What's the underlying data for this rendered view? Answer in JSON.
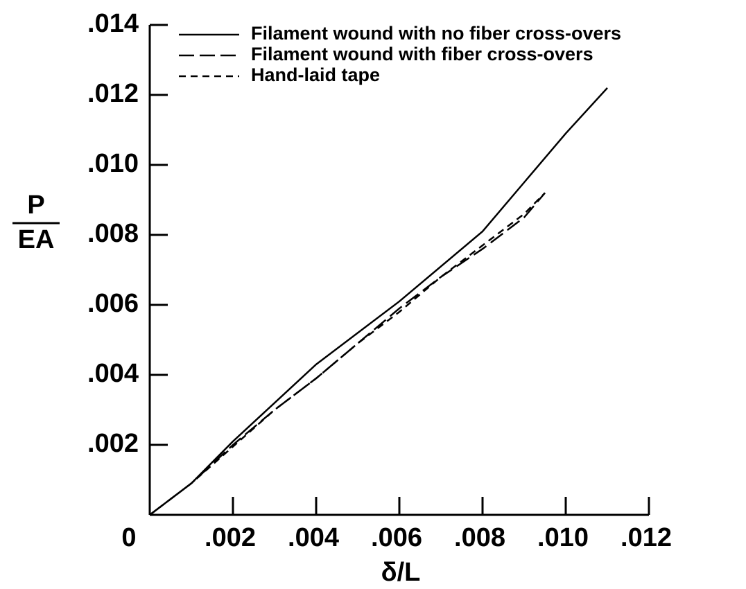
{
  "chart_data": {
    "type": "line",
    "y_label_numerator": "P",
    "y_label_denominator": "EA",
    "x_label": "δ/L",
    "xlim": [
      0,
      0.012
    ],
    "ylim": [
      0,
      0.014
    ],
    "xticks": [
      0,
      {
        "value": 0.002,
        "label": ".002"
      },
      {
        "value": 0.004,
        "label": ".004"
      },
      {
        "value": 0.006,
        "label": ".006"
      },
      {
        "value": 0.008,
        "label": ".008"
      },
      {
        "value": 0.01,
        "label": ".010"
      },
      {
        "value": 0.012,
        "label": ".012"
      }
    ],
    "yticks": [
      {
        "value": 0.002,
        "label": ".002"
      },
      {
        "value": 0.004,
        "label": ".004"
      },
      {
        "value": 0.006,
        "label": ".006"
      },
      {
        "value": 0.008,
        "label": ".008"
      },
      {
        "value": 0.01,
        "label": ".010"
      },
      {
        "value": 0.012,
        "label": ".012"
      },
      {
        "value": 0.014,
        "label": ".014"
      }
    ],
    "series": [
      {
        "name": "Filament wound with no fiber cross-overs",
        "color": "#000000",
        "dash": "solid",
        "x": [
          0,
          0.001,
          0.002,
          0.003,
          0.004,
          0.005,
          0.006,
          0.007,
          0.008,
          0.009,
          0.01,
          0.011
        ],
        "values": [
          0,
          0.0009,
          0.0021,
          0.0032,
          0.0043,
          0.0052,
          0.0061,
          0.0071,
          0.0081,
          0.0095,
          0.0109,
          0.0122
        ]
      },
      {
        "name": "Filament wound with fiber cross-overs",
        "color": "#000000",
        "dash": "long",
        "x": [
          0,
          0.001,
          0.002,
          0.003,
          0.004,
          0.005,
          0.006,
          0.007,
          0.008,
          0.009,
          0.0095
        ],
        "values": [
          0,
          0.0009,
          0.002,
          0.003,
          0.0039,
          0.0049,
          0.0059,
          0.0068,
          0.0076,
          0.0085,
          0.0092
        ]
      },
      {
        "name": "Hand-laid tape",
        "color": "#000000",
        "dash": "short",
        "x": [
          0,
          0.001,
          0.002,
          0.003,
          0.004,
          0.005,
          0.006,
          0.007,
          0.008,
          0.009,
          0.0095
        ],
        "values": [
          0,
          0.0009,
          0.00195,
          0.003,
          0.0039,
          0.0049,
          0.0058,
          0.0068,
          0.0077,
          0.0086,
          0.0092
        ]
      }
    ]
  }
}
